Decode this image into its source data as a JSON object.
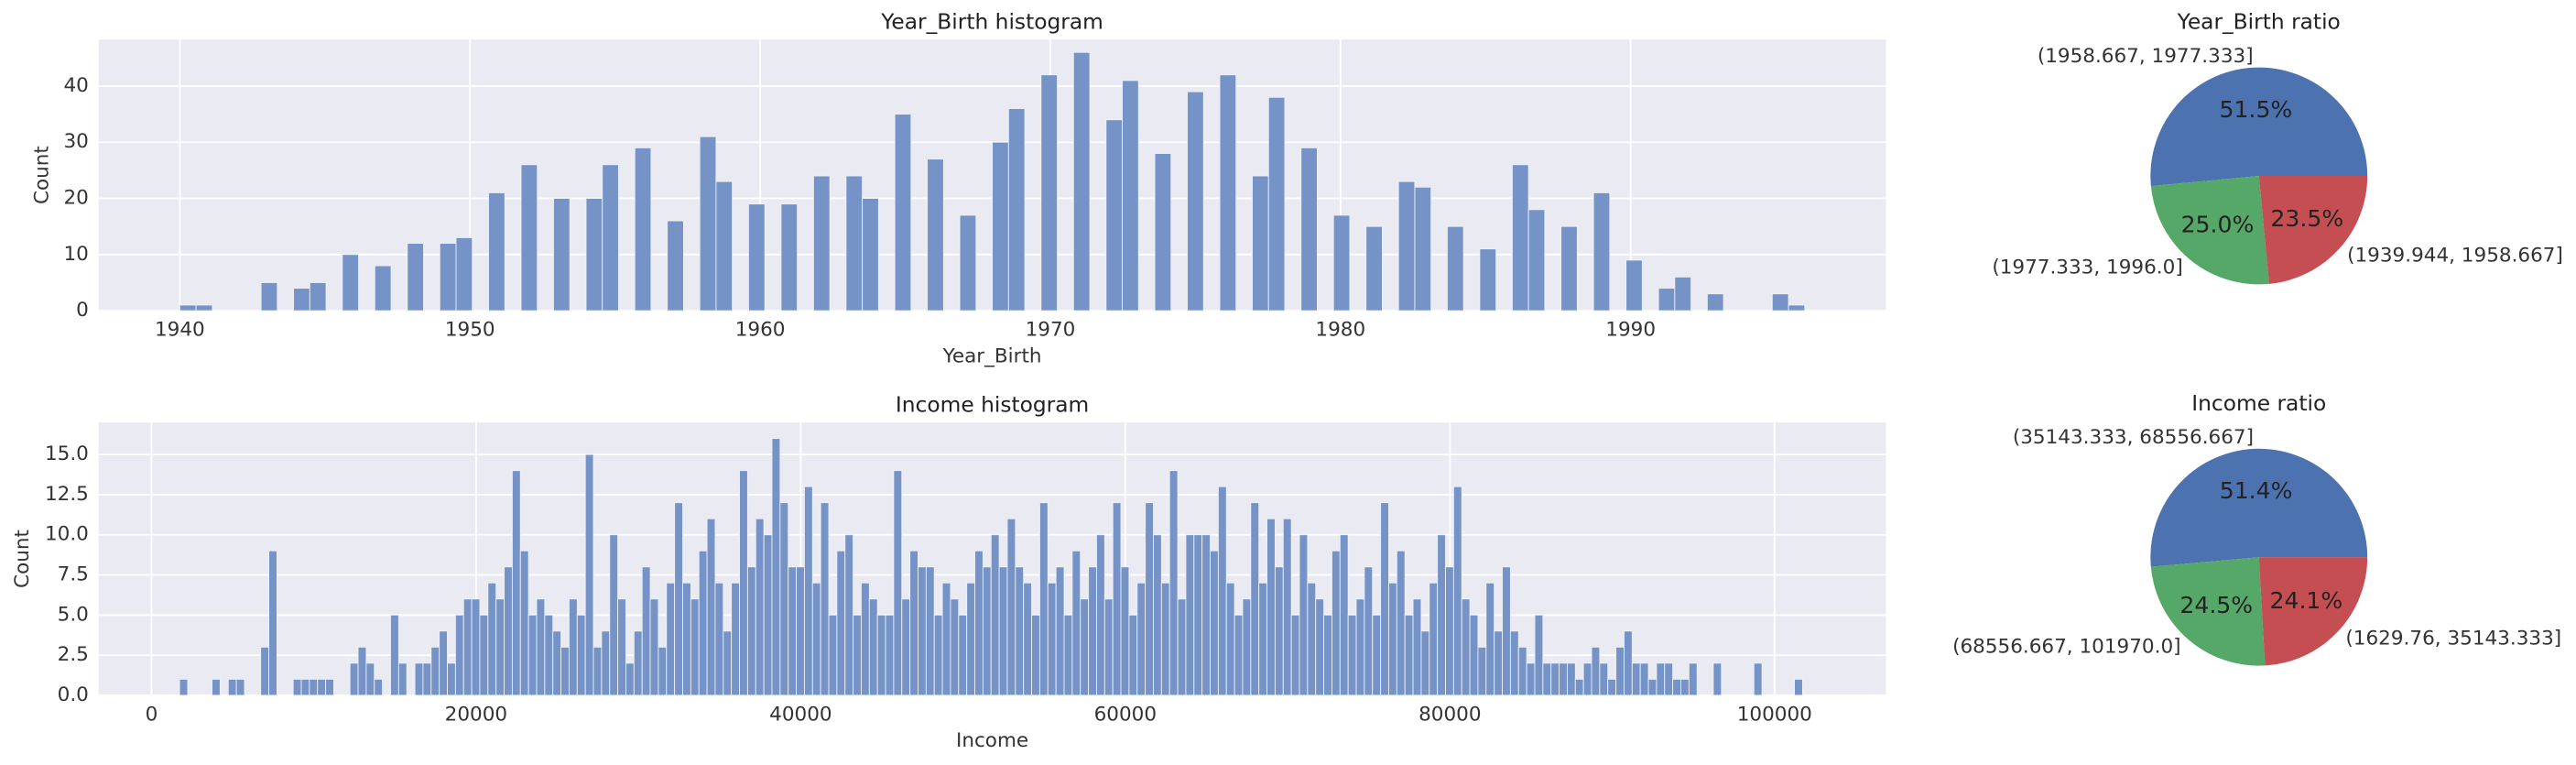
{
  "chart_data": [
    {
      "type": "histogram",
      "title": "Year_Birth histogram",
      "xlabel": "Year_Birth",
      "ylabel": "Count",
      "color": "#7593c6",
      "grid": true,
      "xlim": [
        1937.2,
        1998.8
      ],
      "ylim": [
        0,
        48.3
      ],
      "xticks": [
        1940,
        1950,
        1960,
        1970,
        1980,
        1990
      ],
      "yticks": [
        0,
        10,
        20,
        30,
        40
      ],
      "bins": [
        1940,
        1940.56,
        1941.12,
        1941.68,
        1942.24,
        1942.8,
        1943.36,
        1943.92,
        1944.48,
        1945.04,
        1945.6,
        1946.16,
        1946.72,
        1947.28,
        1947.84,
        1948.4,
        1948.96,
        1949.52,
        1950.08,
        1950.64,
        1951.2,
        1951.76,
        1952.32,
        1952.88,
        1953.44,
        1954,
        1954.56,
        1955.12,
        1955.68,
        1956.24,
        1956.8,
        1957.36,
        1957.92,
        1958.48,
        1959.04,
        1959.6,
        1960.16,
        1960.72,
        1961.28,
        1961.84,
        1962.4,
        1962.96,
        1963.52,
        1964.08,
        1964.64,
        1965.2,
        1965.76,
        1966.32,
        1966.88,
        1967.44,
        1968,
        1968.56,
        1969.12,
        1969.68,
        1970.24,
        1970.8,
        1971.36,
        1971.92,
        1972.48,
        1973.04,
        1973.6,
        1974.16,
        1974.72,
        1975.28,
        1975.84,
        1976.4,
        1976.96,
        1977.52,
        1978.08,
        1978.64,
        1979.2,
        1979.76,
        1980.32,
        1980.88,
        1981.44,
        1982,
        1982.56,
        1983.12,
        1983.68,
        1984.24,
        1984.8,
        1985.36,
        1985.92,
        1986.48,
        1987.04,
        1987.6,
        1988.16,
        1988.72,
        1989.28,
        1989.84,
        1990.4,
        1990.96,
        1991.52,
        1992.08,
        1992.64,
        1993.2,
        1993.76,
        1994.32,
        1994.88,
        1995.44,
        1996
      ],
      "counts": [
        1,
        1,
        0,
        0,
        0,
        5,
        0,
        4,
        5,
        0,
        10,
        0,
        8,
        0,
        12,
        0,
        12,
        13,
        0,
        21,
        0,
        26,
        0,
        20,
        0,
        20,
        26,
        0,
        29,
        0,
        16,
        0,
        31,
        23,
        0,
        19,
        0,
        19,
        0,
        24,
        0,
        24,
        20,
        0,
        35,
        0,
        27,
        0,
        17,
        0,
        30,
        36,
        0,
        42,
        0,
        46,
        0,
        34,
        41,
        0,
        28,
        0,
        39,
        0,
        42,
        0,
        24,
        38,
        0,
        29,
        0,
        17,
        0,
        15,
        0,
        23,
        22,
        0,
        15,
        0,
        11,
        0,
        26,
        18,
        0,
        15,
        0,
        21,
        0,
        9,
        0,
        4,
        6,
        0,
        3,
        0,
        0,
        0,
        3,
        1
      ]
    },
    {
      "type": "pie",
      "title": "Year_Birth ratio",
      "categories": [
        "(1958.667, 1977.333]",
        "(1977.333, 1996.0]",
        "(1939.944, 1958.667]"
      ],
      "values": [
        51.5,
        25.0,
        23.5
      ],
      "value_labels": [
        "51.5%",
        "25.0%",
        "23.5%"
      ],
      "colors": [
        "#4c72b0",
        "#55a868",
        "#c44e52"
      ]
    },
    {
      "type": "histogram",
      "title": "Income histogram",
      "xlabel": "Income",
      "ylabel": "Count",
      "color": "#7593c6",
      "grid": true,
      "xlim": [
        -3260,
        106870
      ],
      "ylim": [
        0,
        17
      ],
      "xticks": [
        0,
        20000,
        40000,
        60000,
        80000,
        100000
      ],
      "yticks": [
        {
          "value": 0,
          "label": "0.0"
        },
        2.5,
        {
          "value": 5,
          "label": "5.0"
        },
        7.5,
        {
          "value": 10,
          "label": "10.0"
        },
        12.5,
        {
          "value": 15,
          "label": "15.0"
        }
      ],
      "bins": [
        1730,
        2230,
        2730,
        3230,
        3730,
        4230,
        4730,
        5230,
        5730,
        6230,
        6730,
        7230,
        7730,
        8230,
        8730,
        9230,
        9730,
        10230,
        10730,
        11230,
        11730,
        12230,
        12730,
        13230,
        13730,
        14230,
        14730,
        15230,
        15730,
        16230,
        16730,
        17230,
        17730,
        18230,
        18730,
        19230,
        19730,
        20230,
        20730,
        21230,
        21730,
        22230,
        22730,
        23230,
        23730,
        24230,
        24730,
        25230,
        25730,
        26230,
        26730,
        27230,
        27730,
        28230,
        28730,
        29230,
        29730,
        30230,
        30730,
        31230,
        31730,
        32230,
        32730,
        33230,
        33730,
        34230,
        34730,
        35230,
        35730,
        36230,
        36730,
        37230,
        37730,
        38230,
        38730,
        39230,
        39730,
        40230,
        40730,
        41230,
        41730,
        42230,
        42730,
        43230,
        43730,
        44230,
        44730,
        45230,
        45730,
        46230,
        46730,
        47230,
        47730,
        48230,
        48730,
        49230,
        49730,
        50230,
        50730,
        51230,
        51730,
        52230,
        52730,
        53230,
        53730,
        54230,
        54730,
        55230,
        55730,
        56230,
        56730,
        57230,
        57730,
        58230,
        58730,
        59230,
        59730,
        60230,
        60730,
        61230,
        61730,
        62230,
        62730,
        63230,
        63730,
        64230,
        64730,
        65230,
        65730,
        66230,
        66730,
        67230,
        67730,
        68230,
        68730,
        69230,
        69730,
        70230,
        70730,
        71230,
        71730,
        72230,
        72730,
        73230,
        73730,
        74230,
        74730,
        75230,
        75730,
        76230,
        76730,
        77230,
        77730,
        78230,
        78730,
        79230,
        79730,
        80230,
        80730,
        81230,
        81730,
        82230,
        82730,
        83230,
        83730,
        84230,
        84730,
        85230,
        85730,
        86230,
        86730,
        87230,
        87730,
        88230,
        88730,
        89230,
        89730,
        90230,
        90730,
        91230,
        91730,
        92230,
        92730,
        93230,
        93730,
        94230,
        94730,
        95230,
        95730,
        96230,
        96730,
        97230,
        97730,
        98230,
        98730,
        99230,
        99730,
        100230,
        100730,
        101230,
        101730
      ],
      "counts": [
        1,
        0,
        0,
        0,
        1,
        0,
        1,
        1,
        0,
        0,
        3,
        9,
        0,
        0,
        1,
        1,
        1,
        1,
        1,
        0,
        0,
        2,
        3,
        2,
        1,
        0,
        5,
        2,
        0,
        2,
        2,
        3,
        4,
        2,
        5,
        6,
        6,
        5,
        7,
        6,
        8,
        14,
        9,
        5,
        6,
        5,
        4,
        3,
        6,
        5,
        15,
        3,
        4,
        10,
        6,
        2,
        4,
        8,
        6,
        3,
        7,
        12,
        7,
        6,
        9,
        11,
        7,
        4,
        7,
        14,
        8,
        11,
        10,
        16,
        12,
        8,
        8,
        13,
        7,
        12,
        5,
        9,
        10,
        5,
        7,
        6,
        5,
        5,
        14,
        6,
        9,
        8,
        8,
        5,
        7,
        6,
        5,
        7,
        9,
        8,
        10,
        8,
        11,
        8,
        7,
        5,
        12,
        7,
        8,
        5,
        9,
        6,
        8,
        10,
        6,
        12,
        8,
        5,
        7,
        12,
        10,
        7,
        14,
        6,
        10,
        10,
        10,
        9,
        13,
        7,
        5,
        6,
        12,
        7,
        11,
        8,
        11,
        5,
        10,
        7,
        6,
        5,
        9,
        10,
        5,
        6,
        8,
        5,
        12,
        7,
        9,
        5,
        6,
        4,
        7,
        10,
        8,
        13,
        6,
        5,
        3,
        7,
        4,
        8,
        4,
        3,
        2,
        5,
        2,
        2,
        2,
        2,
        1,
        2,
        3,
        2,
        1,
        3,
        4,
        2,
        2,
        1,
        2,
        2,
        1,
        1,
        2,
        0,
        0,
        2,
        0,
        0,
        0,
        0,
        2,
        0,
        0,
        0,
        0,
        1
      ]
    },
    {
      "type": "pie",
      "title": "Income ratio",
      "categories": [
        "(35143.333, 68556.667]",
        "(68556.667, 101970.0]",
        "(1629.76, 35143.333]"
      ],
      "values": [
        51.4,
        24.5,
        24.1
      ],
      "value_labels": [
        "51.4%",
        "24.5%",
        "24.1%"
      ],
      "colors": [
        "#4c72b0",
        "#55a868",
        "#c44e52"
      ]
    }
  ]
}
